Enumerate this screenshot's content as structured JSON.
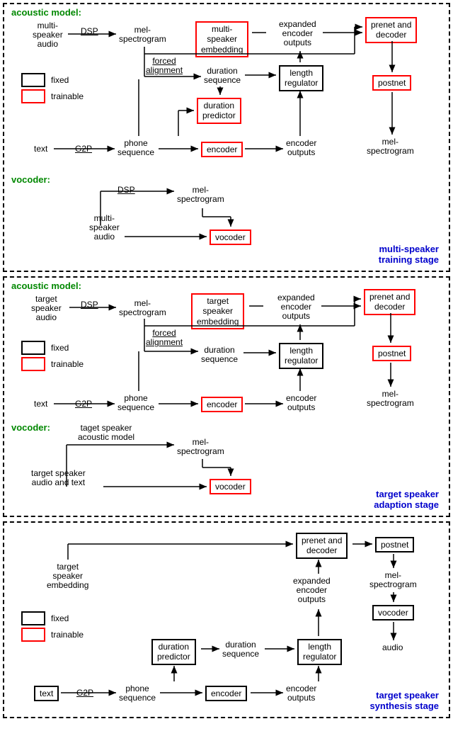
{
  "colors": {
    "fixed": "#000000",
    "trainable": "#ff0000",
    "section": "#008800",
    "stage": "#0000cc",
    "arrow": "#000000",
    "bg": "#ffffff"
  },
  "legend": {
    "fixed": "fixed",
    "trainable": "trainable"
  },
  "stage1": {
    "title": "multi-speaker\ntraining stage",
    "am": "acoustic model:",
    "voc": "vocoder:",
    "nodes": {
      "msa": "multi-\nspeaker\naudio",
      "dsp": "DSP",
      "mel": "mel-\nspectrogram",
      "mse": "multi-\nspeaker\nembedding",
      "fa": "forced\nalignment",
      "ds": "duration\nsequence",
      "lr": "length\nregulator",
      "dp": "duration\npredictor",
      "text": "text",
      "g2p": "G2P",
      "ps": "phone\nsequence",
      "enc": "encoder",
      "eo": "encoder\noutputs",
      "eeo": "expanded\nencoder\noutputs",
      "pd": "prenet and\ndecoder",
      "pn": "postnet",
      "mel2": "mel-\nspectrogram",
      "vmsa": "multi-\nspeaker\naudio",
      "vdsp": "DSP",
      "vmel": "mel-\nspectrogram",
      "vvoc": "vocoder"
    }
  },
  "stage2": {
    "title": "target speaker\nadaption stage",
    "am": "acoustic model:",
    "voc": "vocoder:",
    "nodes": {
      "tsa": "target\nspeaker\naudio",
      "dsp": "DSP",
      "mel": "mel-\nspectrogram",
      "tse": "target\nspeaker\nembedding",
      "fa": "forced\nalignment",
      "ds": "duration\nsequence",
      "lr": "length\nregulator",
      "text": "text",
      "g2p": "G2P",
      "ps": "phone\nsequence",
      "enc": "encoder",
      "eo": "encoder\noutputs",
      "eeo": "expanded\nencoder\noutputs",
      "pd": "prenet and\ndecoder",
      "pn": "postnet",
      "mel2": "mel-\nspectrogram",
      "tsam": "taget speaker\nacoustic model",
      "vmel": "mel-\nspectrogram",
      "tsat": "target speaker\naudio and text",
      "vvoc": "vocoder"
    }
  },
  "stage3": {
    "title": "target speaker\nsynthesis stage",
    "nodes": {
      "tse": "target\nspeaker\nembedding",
      "text": "text",
      "g2p": "G2P",
      "ps": "phone\nsequence",
      "dp": "duration\npredictor",
      "ds": "duration\nsequence",
      "enc": "encoder",
      "eo": "encoder\noutputs",
      "lr": "length\nregulator",
      "eeo": "expanded\nencoder\noutputs",
      "pd": "prenet and\ndecoder",
      "pn": "postnet",
      "mel": "mel-\nspectrogram",
      "voc": "vocoder",
      "audio": "audio"
    }
  }
}
